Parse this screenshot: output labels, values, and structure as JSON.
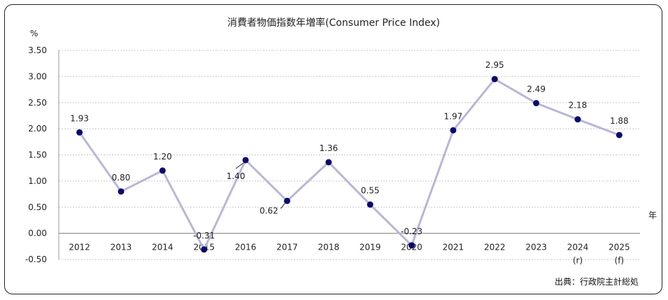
{
  "chart_data": {
    "type": "line",
    "title": "消費者物価指数年増率(Consumer Price Index)",
    "ylabel": "%",
    "xlabel": "年",
    "source": "出典：行政院主計総処",
    "categories": [
      "2012",
      "2013",
      "2014",
      "2015",
      "2016",
      "2017",
      "2018",
      "2019",
      "2020",
      "2021",
      "2022",
      "2023",
      "2024",
      "2025"
    ],
    "category_notes": [
      "",
      "",
      "",
      "",
      "",
      "",
      "",
      "",
      "",
      "",
      "",
      "",
      "(r)",
      "(f)"
    ],
    "values": [
      1.93,
      0.8,
      1.2,
      -0.31,
      1.4,
      0.62,
      1.36,
      0.55,
      -0.23,
      1.97,
      2.95,
      2.49,
      2.18,
      1.88
    ],
    "value_labels": [
      "1.93",
      "0.80",
      "1.20",
      "-0.31",
      "1.40",
      "0.62",
      "1.36",
      "0.55",
      "-0.23",
      "1.97",
      "2.95",
      "2.49",
      "2.18",
      "1.88"
    ],
    "ylim": [
      -0.5,
      3.5
    ],
    "yticks": [
      "-0.50",
      "0.00",
      "0.50",
      "1.00",
      "1.50",
      "2.00",
      "2.50",
      "3.00",
      "3.50"
    ],
    "grid": true,
    "colors": {
      "line": "#b9b6d8",
      "marker": "#0a0a6e",
      "negative_tick": "#d40000",
      "grid": "#c8c8c8"
    }
  }
}
